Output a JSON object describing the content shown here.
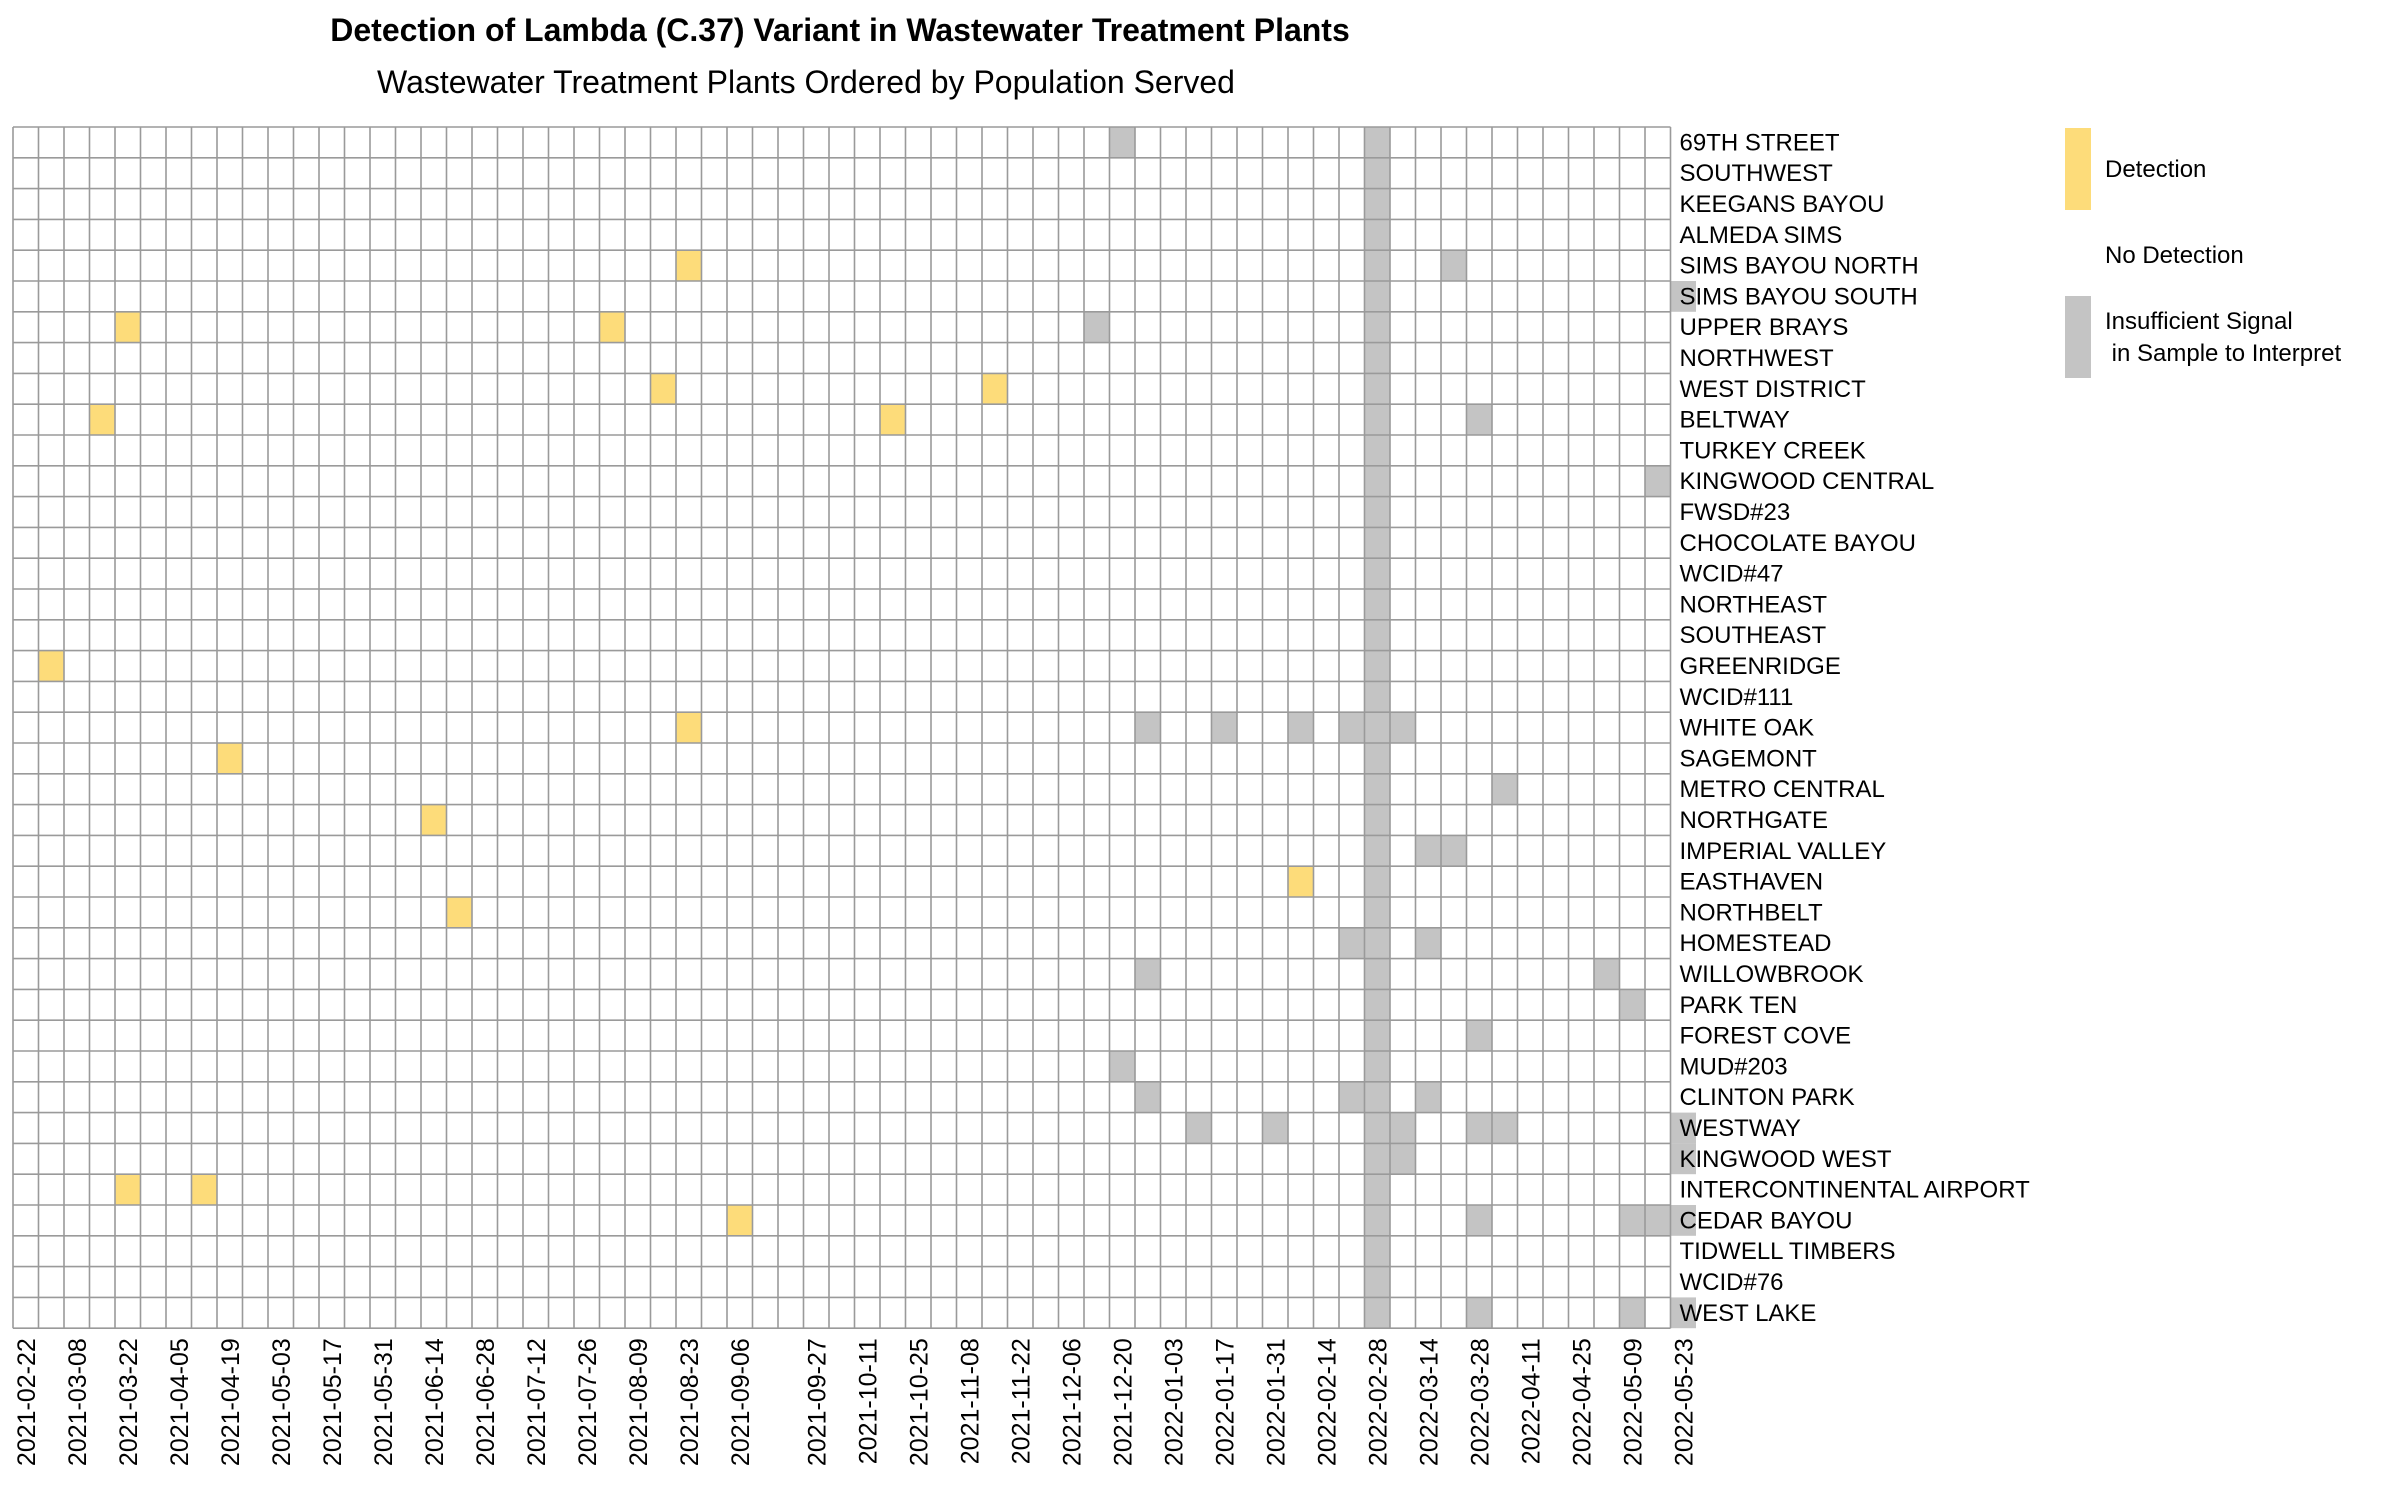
{
  "chart_data": {
    "type": "heatmap",
    "title": "Detection of Lambda (C.37) Variant in Wastewater Treatment Plants",
    "subtitle": "Wastewater Treatment Plants Ordered by Population Served",
    "x_start_date": "2021-02-22",
    "x_week_count": 65,
    "x_tick_labels": [
      "2021-02-22",
      "2021-03-08",
      "2021-03-22",
      "2021-04-05",
      "2021-04-19",
      "2021-05-03",
      "2021-05-17",
      "2021-05-31",
      "2021-06-14",
      "2021-06-28",
      "2021-07-12",
      "2021-07-26",
      "2021-08-09",
      "2021-08-23",
      "2021-09-06",
      "2021-09-27",
      "2021-10-11",
      "2021-10-25",
      "2021-11-08",
      "2021-11-22",
      "2021-12-06",
      "2021-12-20",
      "2022-01-03",
      "2022-01-17",
      "2022-01-31",
      "2022-02-14",
      "2022-02-28",
      "2022-03-14",
      "2022-03-28",
      "2022-04-11",
      "2022-04-25",
      "2022-05-09",
      "2022-05-23"
    ],
    "plants": [
      "69TH STREET",
      "SOUTHWEST",
      "KEEGANS BAYOU",
      "ALMEDA SIMS",
      "SIMS BAYOU NORTH",
      "SIMS BAYOU SOUTH",
      "UPPER BRAYS",
      "NORTHWEST",
      "WEST DISTRICT",
      "BELTWAY",
      "TURKEY CREEK",
      "KINGWOOD CENTRAL",
      "FWSD#23",
      "CHOCOLATE BAYOU",
      "WCID#47",
      "NORTHEAST",
      "SOUTHEAST",
      "GREENRIDGE",
      "WCID#111",
      "WHITE OAK",
      "SAGEMONT",
      "METRO CENTRAL",
      "NORTHGATE",
      "IMPERIAL VALLEY",
      "EASTHAVEN",
      "NORTHBELT",
      "HOMESTEAD",
      "WILLOWBROOK",
      "PARK TEN",
      "FOREST COVE",
      "MUD#203",
      "CLINTON PARK",
      "WESTWAY",
      "KINGWOOD WEST",
      "INTERCONTINENTAL AIRPORT",
      "CEDAR BAYOU",
      "TIDWELL TIMBERS",
      "WCID#76",
      "WEST LAKE"
    ],
    "detection": [
      [
        "SIMS BAYOU NORTH",
        "2021-08-23"
      ],
      [
        "UPPER BRAYS",
        "2021-03-22"
      ],
      [
        "UPPER BRAYS",
        "2021-08-02"
      ],
      [
        "WEST DISTRICT",
        "2021-08-16"
      ],
      [
        "WEST DISTRICT",
        "2021-11-15"
      ],
      [
        "BELTWAY",
        "2021-03-15"
      ],
      [
        "BELTWAY",
        "2021-10-18"
      ],
      [
        "GREENRIDGE",
        "2021-03-01"
      ],
      [
        "WHITE OAK",
        "2021-08-23"
      ],
      [
        "SAGEMONT",
        "2021-04-19"
      ],
      [
        "NORTHGATE",
        "2021-06-14"
      ],
      [
        "EASTHAVEN",
        "2022-02-07"
      ],
      [
        "NORTHBELT",
        "2021-06-21"
      ],
      [
        "INTERCONTINENTAL AIRPORT",
        "2021-03-22"
      ],
      [
        "INTERCONTINENTAL AIRPORT",
        "2021-04-12"
      ],
      [
        "CEDAR BAYOU",
        "2021-09-06"
      ]
    ],
    "insufficient_signal_all_plants_week": "2022-02-28",
    "insufficient_signal": [
      [
        "69TH STREET",
        "2021-12-20"
      ],
      [
        "SIMS BAYOU NORTH",
        "2022-03-21"
      ],
      [
        "SIMS BAYOU SOUTH",
        "2022-05-23"
      ],
      [
        "UPPER BRAYS",
        "2021-12-13"
      ],
      [
        "BELTWAY",
        "2022-03-28"
      ],
      [
        "KINGWOOD CENTRAL",
        "2022-05-16"
      ],
      [
        "WHITE OAK",
        "2021-12-27"
      ],
      [
        "WHITE OAK",
        "2022-01-17"
      ],
      [
        "WHITE OAK",
        "2022-02-07"
      ],
      [
        "WHITE OAK",
        "2022-02-21"
      ],
      [
        "WHITE OAK",
        "2022-03-07"
      ],
      [
        "METRO CENTRAL",
        "2022-04-04"
      ],
      [
        "IMPERIAL VALLEY",
        "2022-03-14"
      ],
      [
        "IMPERIAL VALLEY",
        "2022-03-21"
      ],
      [
        "HOMESTEAD",
        "2022-02-21"
      ],
      [
        "HOMESTEAD",
        "2022-03-14"
      ],
      [
        "WILLOWBROOK",
        "2021-12-27"
      ],
      [
        "WILLOWBROOK",
        "2022-05-02"
      ],
      [
        "PARK TEN",
        "2022-05-09"
      ],
      [
        "FOREST COVE",
        "2022-03-28"
      ],
      [
        "MUD#203",
        "2021-12-20"
      ],
      [
        "CLINTON PARK",
        "2021-12-27"
      ],
      [
        "CLINTON PARK",
        "2022-02-21"
      ],
      [
        "CLINTON PARK",
        "2022-03-14"
      ],
      [
        "WESTWAY",
        "2022-01-10"
      ],
      [
        "WESTWAY",
        "2022-01-31"
      ],
      [
        "WESTWAY",
        "2022-03-07"
      ],
      [
        "WESTWAY",
        "2022-03-28"
      ],
      [
        "WESTWAY",
        "2022-04-04"
      ],
      [
        "WESTWAY",
        "2022-05-23"
      ],
      [
        "KINGWOOD WEST",
        "2022-03-07"
      ],
      [
        "KINGWOOD WEST",
        "2022-05-23"
      ],
      [
        "CEDAR BAYOU",
        "2022-03-28"
      ],
      [
        "CEDAR BAYOU",
        "2022-05-09"
      ],
      [
        "CEDAR BAYOU",
        "2022-05-16"
      ],
      [
        "CEDAR BAYOU",
        "2022-05-23"
      ],
      [
        "WEST LAKE",
        "2022-03-28"
      ],
      [
        "WEST LAKE",
        "2022-05-09"
      ],
      [
        "WEST LAKE",
        "2022-05-23"
      ]
    ],
    "legend": [
      {
        "key": "detection",
        "label": "Detection",
        "color": "#fddc7a"
      },
      {
        "key": "no_detection",
        "label": "No Detection",
        "color": "#ffffff"
      },
      {
        "key": "insufficient",
        "label": "Insufficient Signal\n in Sample to Interpret",
        "color": "#c4c4c4"
      }
    ],
    "legend_placement": "right",
    "grid": true
  }
}
